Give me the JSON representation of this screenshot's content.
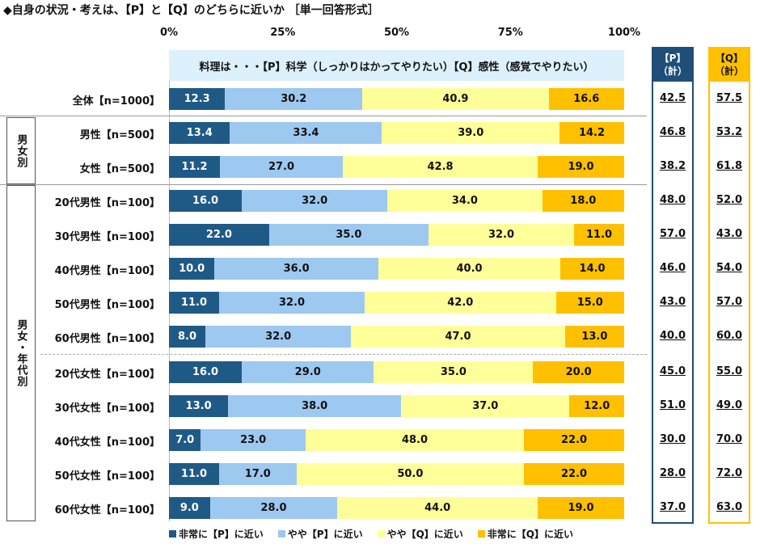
{
  "chart_data": {
    "type": "bar",
    "orientation": "horizontal-stacked-100",
    "title": "◆自身の状況・考えは、【P】と【Q】のどちらに近いか ［単一回答形式］",
    "subtitle": "料理は・・・【P】科学（しっかりはかってやりたい）【Q】感性（感覚でやりたい）",
    "x_ticks": [
      "0%",
      "25%",
      "50%",
      "75%",
      "100%"
    ],
    "xlim": [
      0,
      100
    ],
    "categories": [
      "全体【n=1000】",
      "男性【n=500】",
      "女性【n=500】",
      "20代男性【n=100】",
      "30代男性【n=100】",
      "40代男性【n=100】",
      "50代男性【n=100】",
      "60代男性【n=100】",
      "20代女性【n=100】",
      "30代女性【n=100】",
      "40代女性【n=100】",
      "50代女性【n=100】",
      "60代女性【n=100】"
    ],
    "series": [
      {
        "name": "非常に【P】に近い",
        "color": "#1f5a87",
        "text_color": "#ffffff",
        "values": [
          12.3,
          13.4,
          11.2,
          16.0,
          22.0,
          10.0,
          11.0,
          8.0,
          16.0,
          13.0,
          7.0,
          11.0,
          9.0
        ]
      },
      {
        "name": "やや【P】に近い",
        "color": "#9dc8f0",
        "text_color": "#111111",
        "values": [
          30.2,
          33.4,
          27.0,
          32.0,
          35.0,
          36.0,
          32.0,
          32.0,
          29.0,
          38.0,
          23.0,
          17.0,
          28.0
        ]
      },
      {
        "name": "やや【Q】に近い",
        "color": "#ffff99",
        "text_color": "#111111",
        "values": [
          40.9,
          39.0,
          42.8,
          34.0,
          32.0,
          40.0,
          42.0,
          47.0,
          35.0,
          37.0,
          48.0,
          50.0,
          44.0
        ]
      },
      {
        "name": "非常に【Q】に近い",
        "color": "#ffc000",
        "text_color": "#111111",
        "values": [
          16.6,
          14.2,
          19.0,
          18.0,
          11.0,
          14.0,
          15.0,
          13.0,
          20.0,
          12.0,
          22.0,
          22.0,
          19.0
        ]
      }
    ],
    "totals": {
      "p_header": [
        "【P】",
        "（計）"
      ],
      "q_header": [
        "【Q】",
        "（計）"
      ],
      "p_color": "#1f4e79",
      "q_color": "#ffc000",
      "p": [
        "42.5",
        "46.8",
        "38.2",
        "48.0",
        "57.0",
        "46.0",
        "43.0",
        "40.0",
        "45.0",
        "51.0",
        "30.0",
        "28.0",
        "37.0"
      ],
      "q": [
        "57.5",
        "53.2",
        "61.8",
        "52.0",
        "43.0",
        "54.0",
        "57.0",
        "60.0",
        "55.0",
        "49.0",
        "70.0",
        "72.0",
        "63.0"
      ]
    },
    "groups": [
      {
        "label": "男女別",
        "rows": [
          1,
          2
        ]
      },
      {
        "label": "男女・年代別",
        "rows": [
          3,
          12
        ]
      }
    ],
    "legend_position": "bottom",
    "grid": false
  }
}
